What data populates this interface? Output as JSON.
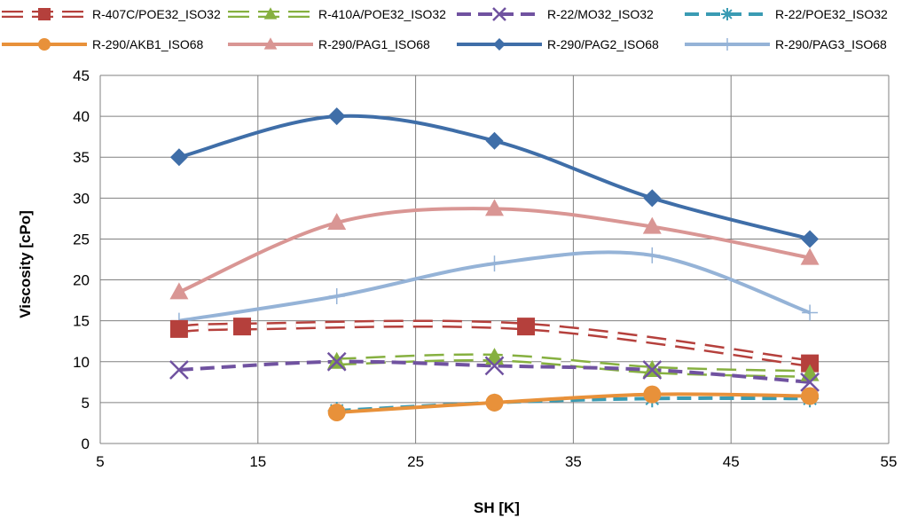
{
  "chart_data": {
    "type": "scatter",
    "xlabel": "SH [K]",
    "ylabel": "Viscosity [cPo]",
    "xlim": [
      5,
      55
    ],
    "ylim": [
      0,
      45
    ],
    "x_ticks": [
      5,
      15,
      25,
      35,
      45,
      55
    ],
    "y_ticks": [
      0,
      5,
      10,
      15,
      20,
      25,
      30,
      35,
      40,
      45
    ],
    "grid": true,
    "legend_position": "top",
    "series": [
      {
        "name": "R-407C/POE32_ISO32",
        "color": "#b5403c",
        "dash": "double-dash",
        "marker": "square",
        "x": [
          10,
          14,
          32,
          50
        ],
        "y": [
          14.0,
          14.3,
          14.3,
          9.8
        ]
      },
      {
        "name": "R-410A/POE32_ISO32",
        "color": "#86b040",
        "dash": "double-dash",
        "marker": "triangle",
        "x": [
          20,
          30,
          40,
          50
        ],
        "y": [
          10.0,
          10.5,
          9.0,
          8.5
        ]
      },
      {
        "name": "R-22/MO32_ISO32",
        "color": "#7052a0",
        "dash": "dash",
        "marker": "x",
        "x": [
          10,
          20,
          30,
          40,
          50
        ],
        "y": [
          9.0,
          10.0,
          9.5,
          9.0,
          7.5
        ]
      },
      {
        "name": "R-22/POE32_ISO32",
        "color": "#3a9bb3",
        "dash": "dash",
        "marker": "star",
        "x": [
          20,
          30,
          40,
          50
        ],
        "y": [
          4.0,
          5.0,
          5.5,
          5.5
        ]
      },
      {
        "name": "R-290/AKB1_ISO68",
        "color": "#e8913a",
        "dash": "solid",
        "marker": "circle",
        "x": [
          20,
          30,
          40,
          50
        ],
        "y": [
          3.8,
          5.0,
          6.0,
          5.8
        ]
      },
      {
        "name": "R-290/PAG1_ISO68",
        "color": "#d99694",
        "dash": "solid",
        "marker": "triangle",
        "x": [
          10,
          20,
          30,
          40,
          50
        ],
        "y": [
          18.5,
          27.0,
          28.7,
          26.5,
          22.7
        ]
      },
      {
        "name": "R-290/PAG2_ISO68",
        "color": "#3f6ea8",
        "dash": "solid",
        "marker": "diamond",
        "x": [
          10,
          20,
          30,
          40,
          50
        ],
        "y": [
          35.0,
          40.0,
          37.0,
          30.0,
          25.0
        ]
      },
      {
        "name": "R-290/PAG3_ISO68",
        "color": "#95b3d7",
        "dash": "solid",
        "marker": "plus",
        "x": [
          10,
          20,
          30,
          40,
          50
        ],
        "y": [
          15.0,
          18.0,
          22.0,
          23.0,
          16.0
        ]
      }
    ]
  }
}
